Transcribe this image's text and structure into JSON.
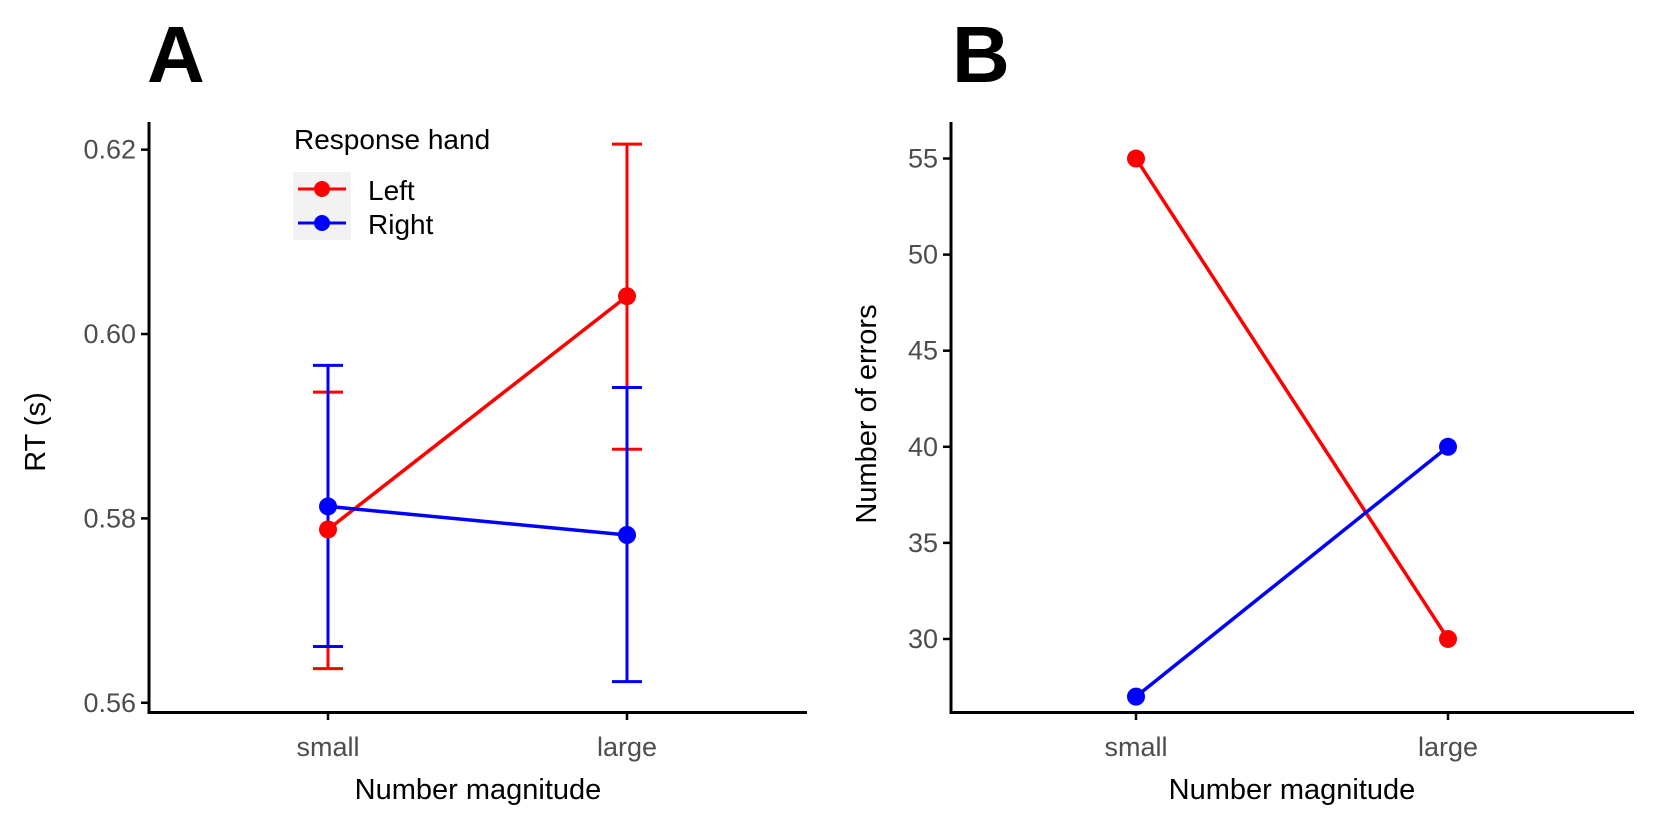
{
  "colors": {
    "Left": "#ff0000",
    "Right": "#0000ff",
    "axis": "#000000",
    "tick_text": "#4d4d4d",
    "legend_bg": "#f2f2f2"
  },
  "chart_data": [
    {
      "panel": "A",
      "type": "line",
      "categories": [
        "small",
        "large"
      ],
      "xlabel": "Number magnitude",
      "ylabel": "RT (s)",
      "ylim": [
        0.559,
        0.623
      ],
      "yticks": [
        0.56,
        0.58,
        0.6,
        0.62
      ],
      "ytick_labels": [
        "0.56",
        "0.58",
        "0.60",
        "0.62"
      ],
      "grid": false,
      "legend": {
        "title": "Response hand",
        "position": "top-center"
      },
      "series": [
        {
          "name": "Left",
          "values": [
            0.5788,
            0.6041
          ],
          "err_low": [
            0.5637,
            0.5875
          ],
          "err_high": [
            0.5937,
            0.6206
          ]
        },
        {
          "name": "Right",
          "values": [
            0.5813,
            0.5782
          ],
          "err_low": [
            0.5661,
            0.5623
          ],
          "err_high": [
            0.5966,
            0.5942
          ]
        }
      ]
    },
    {
      "panel": "B",
      "type": "line",
      "categories": [
        "small",
        "large"
      ],
      "xlabel": "Number magnitude",
      "ylabel": "Number of errors",
      "ylim": [
        26.2,
        56.9
      ],
      "yticks": [
        30,
        35,
        40,
        45,
        50,
        55
      ],
      "ytick_labels": [
        "30",
        "35",
        "40",
        "45",
        "50",
        "55"
      ],
      "grid": false,
      "series": [
        {
          "name": "Left",
          "values": [
            55,
            30
          ]
        },
        {
          "name": "Right",
          "values": [
            27,
            40
          ]
        }
      ]
    }
  ]
}
